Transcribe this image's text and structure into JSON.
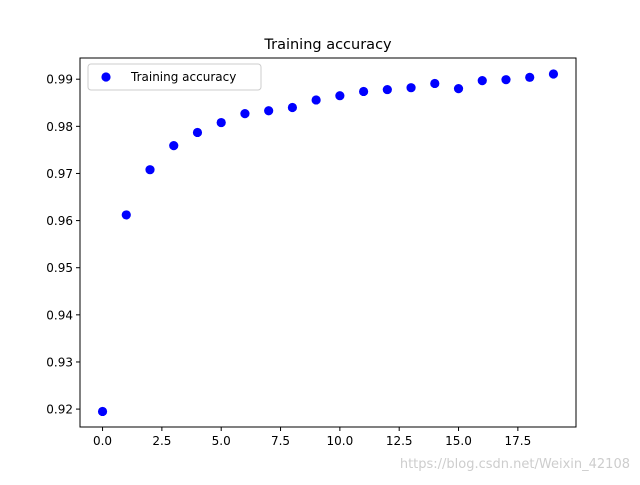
{
  "chart_data": {
    "type": "scatter",
    "title": "Training accuracy",
    "xlabel": "",
    "ylabel": "",
    "xlim": [
      -0.95,
      19.95
    ],
    "ylim": [
      0.9162,
      0.9945
    ],
    "x_ticks": [
      0.0,
      2.5,
      5.0,
      7.5,
      10.0,
      12.5,
      15.0,
      17.5
    ],
    "x_tick_labels": [
      "0.0",
      "2.5",
      "5.0",
      "7.5",
      "10.0",
      "12.5",
      "15.0",
      "17.5"
    ],
    "y_ticks": [
      0.92,
      0.93,
      0.94,
      0.95,
      0.96,
      0.97,
      0.98,
      0.99
    ],
    "y_tick_labels": [
      "0.92",
      "0.93",
      "0.94",
      "0.95",
      "0.96",
      "0.97",
      "0.98",
      "0.99"
    ],
    "grid": false,
    "legend_position": "upper-left",
    "series": [
      {
        "name": "Training accuracy",
        "color": "#0000ff",
        "marker": "circle",
        "x": [
          0,
          1,
          2,
          3,
          4,
          5,
          6,
          7,
          8,
          9,
          10,
          11,
          12,
          13,
          14,
          15,
          16,
          17,
          18,
          19
        ],
        "values": [
          0.9195,
          0.9612,
          0.9708,
          0.9759,
          0.9787,
          0.9808,
          0.9827,
          0.9833,
          0.984,
          0.9856,
          0.9865,
          0.9874,
          0.9878,
          0.9882,
          0.9891,
          0.988,
          0.9897,
          0.9899,
          0.9904,
          0.9911
        ]
      }
    ]
  },
  "watermark": "https://blog.csdn.net/Weixin_42108"
}
